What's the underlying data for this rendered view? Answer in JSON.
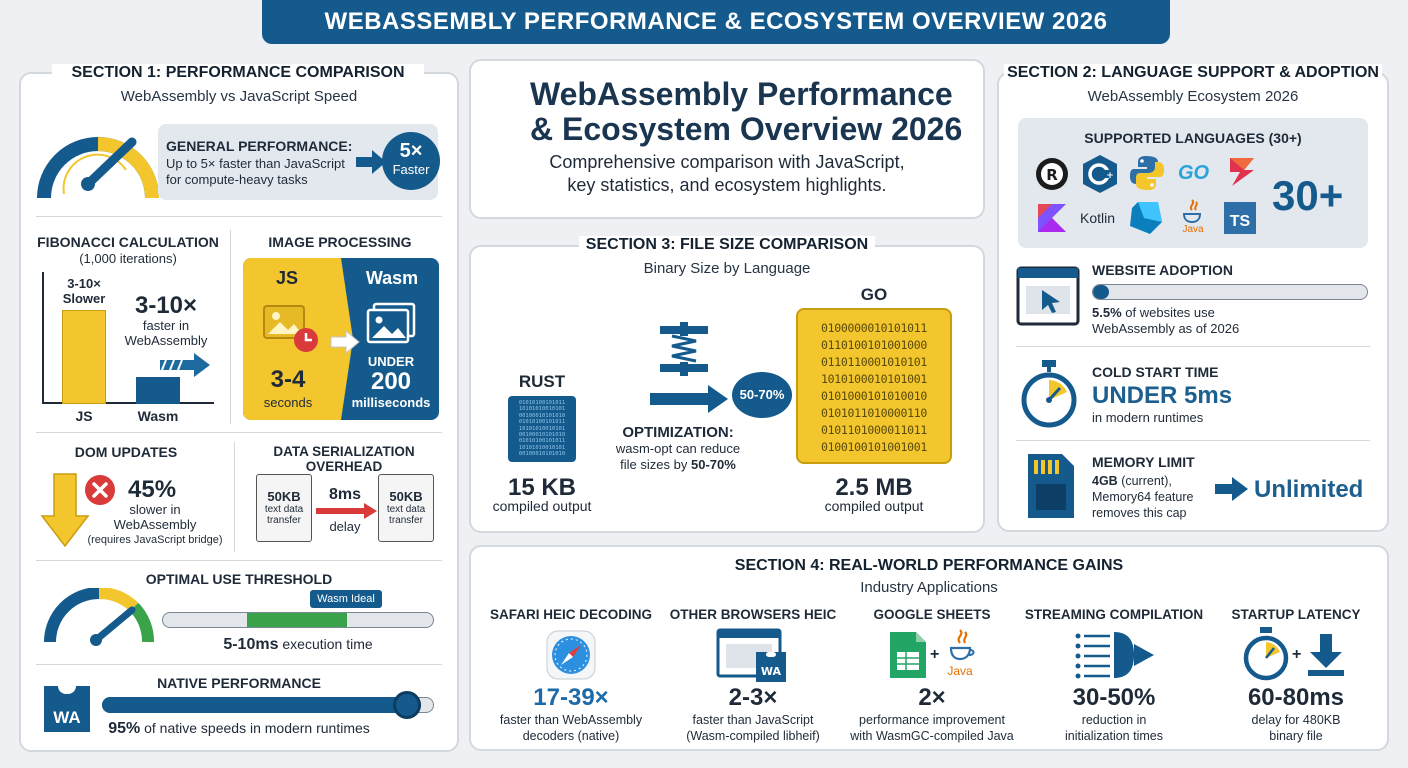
{
  "banner": "WEBASSEMBLY PERFORMANCE & ECOSYSTEM OVERVIEW 2026",
  "hero": {
    "title_line1": "WebAssembly Performance",
    "title_line2": "& Ecosystem Overview 2026",
    "subtitle_line1": "Comprehensive comparison with JavaScript,",
    "subtitle_line2": "key statistics, and ecosystem highlights."
  },
  "section1": {
    "title": "SECTION 1: PERFORMANCE COMPARISON",
    "subtitle": "WebAssembly vs JavaScript Speed",
    "general": {
      "label": "GENERAL PERFORMANCE:",
      "text1": "Up to 5× faster than JavaScript",
      "text2": "for compute-heavy tasks",
      "badge_value": "5×",
      "badge_label": "Faster"
    },
    "fibonacci": {
      "title": "FIBONACCI CALCULATION",
      "subtitle": "(1,000 iterations)",
      "js_note1": "3-10×",
      "js_note2": "Slower",
      "big": "3-10×",
      "text1": "faster in",
      "text2": "WebAssembly",
      "label_js": "JS",
      "label_wasm": "Wasm"
    },
    "image_processing": {
      "title": "IMAGE PROCESSING",
      "js_label": "JS",
      "wasm_label": "Wasm",
      "js_value": "3-4",
      "js_unit": "seconds",
      "wasm_prefix": "UNDER",
      "wasm_value": "200",
      "wasm_unit": "milliseconds"
    },
    "dom": {
      "title": "DOM UPDATES",
      "value": "45%",
      "text1": "slower in",
      "text2": "WebAssembly",
      "note": "(requires JavaScript bridge)"
    },
    "serialization": {
      "title": "DATA SERIALIZATION OVERHEAD",
      "doc_size": "50KB",
      "doc_text1": "text data",
      "doc_text2": "transfer",
      "delay_value": "8ms",
      "delay_label": "delay"
    },
    "threshold": {
      "title": "OPTIMAL USE THRESHOLD",
      "tag": "Wasm Ideal",
      "value": "5-10ms",
      "label": "execution time"
    },
    "native": {
      "title": "NATIVE PERFORMANCE",
      "logo": "WA",
      "value": "95%",
      "label": "of native speeds in modern runtimes",
      "level": 0.96
    }
  },
  "section2": {
    "title": "SECTION 2: LANGUAGE SUPPORT & ADOPTION",
    "subtitle": "WebAssembly Ecosystem 2026",
    "languages_title": "SUPPORTED LANGUAGES (30+)",
    "languages_count": "30+",
    "lang_go": "GO",
    "lang_kotlin": "Kotlin",
    "lang_java": "Java",
    "lang_ts": "TS",
    "lang_c": "C",
    "lang_rust": "R",
    "adoption": {
      "title": "WEBSITE ADOPTION",
      "value": "5.5%",
      "text1": "of websites use",
      "text2": "WebAssembly as of 2026",
      "level": 0.055
    },
    "cold_start": {
      "title": "COLD START TIME",
      "value": "UNDER 5ms",
      "text": "in modern runtimes"
    },
    "memory": {
      "title": "MEMORY LIMIT",
      "value": "4GB",
      "text1": "(current),",
      "text2": "Memory64 feature",
      "text3": "removes this cap",
      "result": "Unlimited"
    }
  },
  "section3": {
    "title": "SECTION 3: FILE SIZE COMPARISON",
    "subtitle": "Binary Size by Language",
    "rust_label": "RUST",
    "rust_value": "15 KB",
    "rust_caption": "compiled output",
    "go_label": "GO",
    "go_value": "2.5 MB",
    "go_caption": "compiled output",
    "opt_badge": "50-70%",
    "opt_title": "OPTIMIZATION:",
    "opt_text1": "wasm-opt can reduce",
    "opt_text2": "file sizes by",
    "opt_text3": "50-70%",
    "binary_rows": [
      "0100000010101011",
      "0110100101001000",
      "0110110001010101",
      "1010100010101001",
      "0101000101010010",
      "0101011010000110",
      "0101101000011011",
      "0100100101001001"
    ],
    "rust_rows": [
      "01010100101011",
      "10101010010101",
      "00100010101010",
      "01010100101011",
      "10101010010101",
      "00100010101010",
      "01010100101011",
      "10101010010101",
      "00100010101010"
    ]
  },
  "section4": {
    "title": "SECTION 4: REAL-WORLD PERFORMANCE GAINS",
    "subtitle": "Industry Applications",
    "items": [
      {
        "title": "SAFARI HEIC DECODING",
        "value": "17-39×",
        "text1": "faster than WebAssembly",
        "text2": "decoders (native)"
      },
      {
        "title": "OTHER BROWSERS HEIC",
        "value": "2-3×",
        "text1": "faster than JavaScript",
        "text2": "(Wasm-compiled libheif)"
      },
      {
        "title": "GOOGLE SHEETS",
        "value": "2×",
        "text1": "performance improvement",
        "text2": "with WasmGC-compiled Java"
      },
      {
        "title": "STREAMING COMPILATION",
        "value": "30-50%",
        "text1": "reduction in",
        "text2": "initialization times"
      },
      {
        "title": "STARTUP LATENCY",
        "value": "60-80ms",
        "text1": "delay for 480KB",
        "text2": "binary file"
      }
    ],
    "wa_badge": "WA",
    "java_label": "Java"
  },
  "colors": {
    "navy": "#155a8c",
    "blue": "#1d5f8f",
    "yellow": "#f2c62c",
    "green": "#3aa34a",
    "red": "#d93a3a"
  }
}
